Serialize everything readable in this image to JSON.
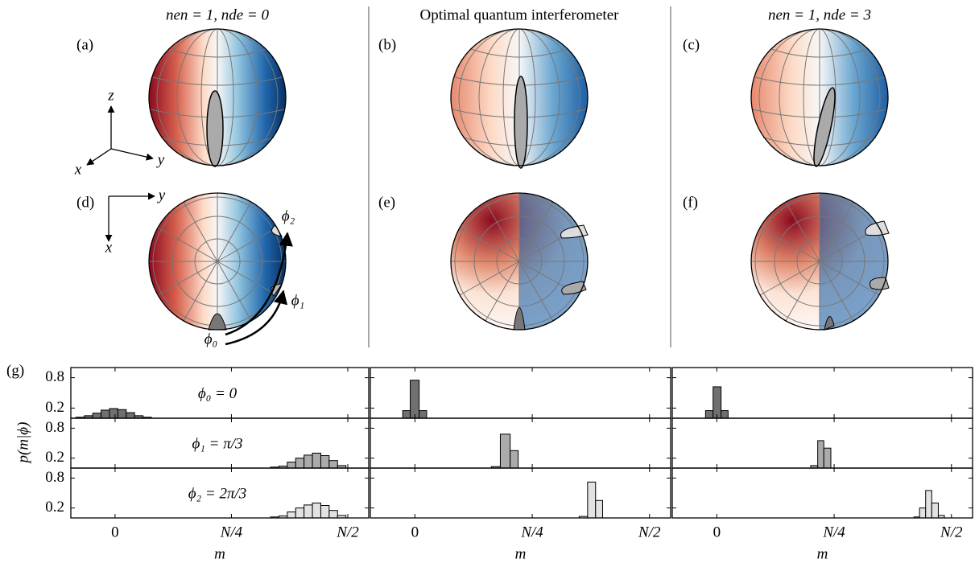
{
  "columns": [
    "nen = 1, nde = 0",
    "Optimal quantum interferometer",
    "nen = 1, nde = 3"
  ],
  "panel_labels": [
    "(a)",
    "(b)",
    "(c)",
    "(d)",
    "(e)",
    "(f)",
    "(g)"
  ],
  "axis_glyphs": [
    "z",
    "y",
    "x",
    "y",
    "x"
  ],
  "phase_labels": [
    "ϕ₀",
    "ϕ₁",
    "ϕ₂"
  ],
  "chart_data": {
    "type": "histogram",
    "y_label": "p(m|ϕ)",
    "x_label": "m",
    "xlim": [
      -0.095,
      0.545
    ],
    "ylim": [
      0,
      1
    ],
    "xticks": [
      0,
      {
        "value": 0.25,
        "label": "N/4"
      },
      {
        "value": 0.5,
        "label": "N/2"
      }
    ],
    "yticks": [
      0.2,
      0.8
    ],
    "annotations": [
      "ϕ₀ = 0",
      "ϕ₁ = π/3",
      "ϕ₂ = 2π/3"
    ],
    "row_colors": [
      "#707070",
      "#ababab",
      "#e2e2e2"
    ],
    "panels": [
      [
        {
          "bins": [
            -0.084,
            -0.066,
            -0.048,
            -0.03,
            -0.012,
            0.006,
            0.024,
            0.042,
            0.06,
            0.078
          ],
          "values": [
            0.02,
            0.05,
            0.1,
            0.16,
            0.19,
            0.17,
            0.11,
            0.05,
            0.02
          ]
        },
        {
          "bins": [
            -0.026,
            -0.01,
            0.009,
            0.025
          ],
          "values": [
            0.15,
            0.75,
            0.15
          ]
        },
        {
          "bins": [
            -0.024,
            -0.008,
            0.009,
            0.024
          ],
          "values": [
            0.15,
            0.62,
            0.15
          ]
        }
      ],
      [
        {
          "bins": [
            0.334,
            0.352,
            0.37,
            0.388,
            0.406,
            0.424,
            0.442,
            0.46,
            0.478,
            0.496
          ],
          "values": [
            0.02,
            0.04,
            0.12,
            0.2,
            0.26,
            0.3,
            0.25,
            0.15,
            0.05
          ]
        },
        {
          "bins": [
            0.163,
            0.182,
            0.203,
            0.22
          ],
          "values": [
            0.03,
            0.68,
            0.35
          ]
        },
        {
          "bins": [
            0.2,
            0.215,
            0.228,
            0.243
          ],
          "values": [
            0.05,
            0.55,
            0.4
          ]
        }
      ],
      [
        {
          "bins": [
            0.334,
            0.352,
            0.37,
            0.388,
            0.406,
            0.424,
            0.442,
            0.46,
            0.478,
            0.496
          ],
          "values": [
            0.02,
            0.04,
            0.12,
            0.2,
            0.26,
            0.3,
            0.25,
            0.15,
            0.05
          ]
        },
        {
          "bins": [
            0.35,
            0.368,
            0.385,
            0.4
          ],
          "values": [
            0.03,
            0.72,
            0.35
          ]
        },
        {
          "bins": [
            0.42,
            0.432,
            0.445,
            0.458,
            0.472,
            0.485
          ],
          "values": [
            0.02,
            0.2,
            0.55,
            0.3,
            0.05
          ]
        }
      ]
    ]
  }
}
